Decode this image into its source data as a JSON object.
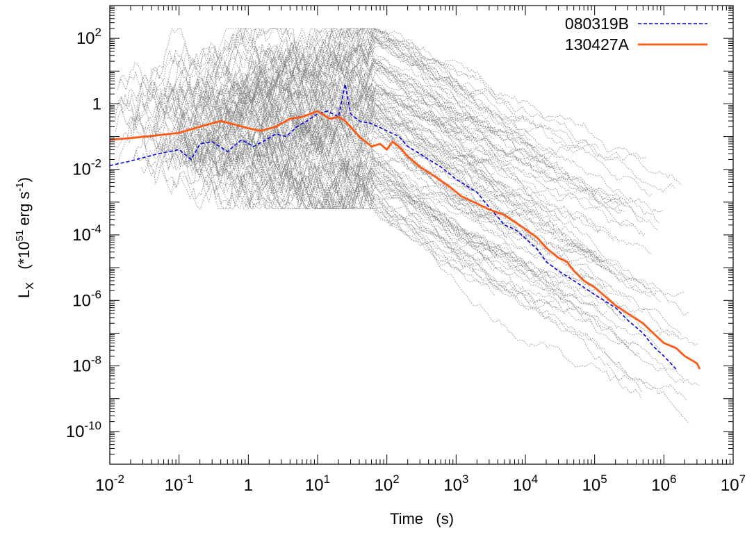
{
  "chart_data": {
    "type": "line",
    "title": "",
    "xlabel": "Time   (s)",
    "ylabel_main": "L",
    "ylabel_sub": "X",
    "ylabel_rest_pre": "   (*10",
    "ylabel_rest_exp": "51",
    "ylabel_rest_mid": " erg s",
    "ylabel_rest_exp2": "-1",
    "ylabel_rest_post": ")",
    "x_scale": "log",
    "y_scale": "log",
    "xlim": [
      0.01,
      10000000
    ],
    "ylim": [
      1e-11,
      1000
    ],
    "x_ticks": [
      {
        "value": 0.01,
        "base": "10",
        "exp": "-2"
      },
      {
        "value": 0.1,
        "base": "10",
        "exp": "-1"
      },
      {
        "value": 1,
        "base": "1",
        "exp": ""
      },
      {
        "value": 10,
        "base": "10",
        "exp": "1"
      },
      {
        "value": 100,
        "base": "10",
        "exp": "2"
      },
      {
        "value": 1000,
        "base": "10",
        "exp": "3"
      },
      {
        "value": 10000,
        "base": "10",
        "exp": "4"
      },
      {
        "value": 100000,
        "base": "10",
        "exp": "5"
      },
      {
        "value": 1000000,
        "base": "10",
        "exp": "6"
      },
      {
        "value": 10000000,
        "base": "10",
        "exp": "7"
      }
    ],
    "y_ticks": [
      {
        "value": 1e-10,
        "base": "10",
        "exp": "-10"
      },
      {
        "value": 1e-08,
        "base": "10",
        "exp": "-8"
      },
      {
        "value": 1e-06,
        "base": "10",
        "exp": "-6"
      },
      {
        "value": 0.0001,
        "base": "10",
        "exp": "-4"
      },
      {
        "value": 0.01,
        "base": "10",
        "exp": "-2"
      },
      {
        "value": 1,
        "base": "1",
        "exp": ""
      },
      {
        "value": 100,
        "base": "10",
        "exp": "2"
      }
    ],
    "grid": false,
    "legend_position": "top-right",
    "series": [
      {
        "name": "080319B",
        "color": "#0000ee",
        "style": "dashed",
        "x": [
          0.01,
          0.02,
          0.05,
          0.1,
          0.15,
          0.2,
          0.3,
          0.5,
          0.8,
          1.2,
          1.8,
          2.5,
          3.5,
          5,
          7,
          10,
          14,
          20,
          25,
          30,
          40,
          60,
          100,
          150,
          200,
          300,
          400,
          600,
          1000,
          2000,
          3000,
          5000,
          7000,
          10000,
          15000,
          20000,
          30000,
          50000,
          70000,
          100000,
          200000,
          300000,
          500000,
          700000,
          1000000,
          1500000
        ],
        "y": [
          0.013,
          0.018,
          0.03,
          0.04,
          0.02,
          0.06,
          0.07,
          0.035,
          0.08,
          0.05,
          0.08,
          0.12,
          0.1,
          0.2,
          0.3,
          0.5,
          0.6,
          0.4,
          4,
          0.5,
          0.3,
          0.25,
          0.15,
          0.1,
          0.05,
          0.03,
          0.02,
          0.012,
          0.005,
          0.002,
          0.0007,
          0.0002,
          0.00015,
          8e-05,
          3.5e-05,
          1.5e-05,
          8e-06,
          4e-06,
          2.5e-06,
          1.5e-06,
          6e-07,
          2.5e-07,
          1e-07,
          4e-08,
          2e-08,
          8e-09
        ]
      },
      {
        "name": "130427A",
        "color": "#ff5a14",
        "style": "solid",
        "x": [
          0.01,
          0.02,
          0.05,
          0.1,
          0.2,
          0.4,
          0.7,
          1.0,
          1.5,
          2.5,
          4,
          6,
          10,
          15,
          20,
          25,
          30,
          40,
          60,
          80,
          100,
          120,
          150,
          200,
          300,
          500,
          800,
          1200,
          2000,
          3000,
          5000,
          7000,
          10000,
          15000,
          20000,
          30000,
          40000,
          50000,
          70000,
          100000,
          150000,
          200000,
          300000,
          500000,
          700000,
          1000000,
          1500000,
          2000000,
          3000000,
          3300000
        ],
        "y": [
          0.08,
          0.09,
          0.11,
          0.13,
          0.2,
          0.3,
          0.22,
          0.18,
          0.15,
          0.2,
          0.35,
          0.4,
          0.6,
          0.35,
          0.4,
          0.3,
          0.2,
          0.1,
          0.05,
          0.06,
          0.04,
          0.07,
          0.05,
          0.025,
          0.012,
          0.006,
          0.003,
          0.0015,
          0.0009,
          0.0006,
          0.0004,
          0.00025,
          0.00015,
          8e-05,
          4e-05,
          2e-05,
          1.5e-05,
          8e-06,
          4e-06,
          2.5e-06,
          1.2e-06,
          7e-07,
          4e-07,
          2e-07,
          1e-07,
          5e-08,
          3.5e-08,
          2e-08,
          1.2e-08,
          8e-09
        ]
      }
    ],
    "background_sample": {
      "name": "",
      "color": "#808080",
      "style": "dotted",
      "count": 110
    }
  }
}
